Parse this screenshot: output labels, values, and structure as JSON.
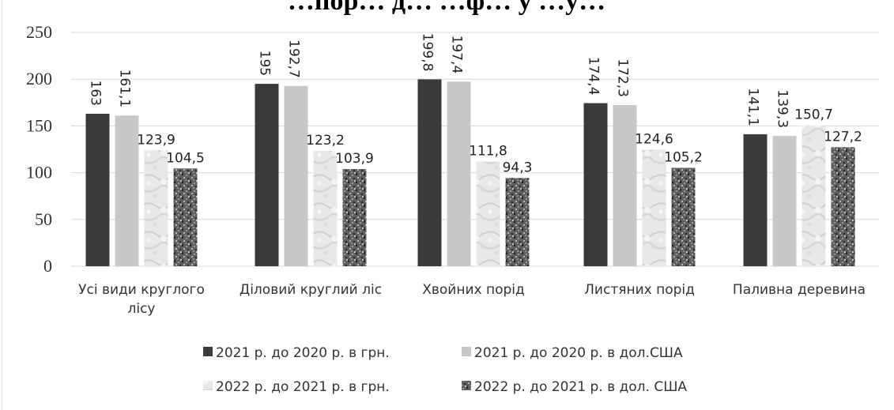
{
  "chart_data": {
    "type": "bar",
    "title": "…пор… д… …ф… у …у…",
    "categories": [
      "Усі види круглого лісу",
      "Діловий круглий ліс",
      "Хвойних порід",
      "Листяних порід",
      "Паливна деревина"
    ],
    "category_lines": [
      [
        "Усі види круглого",
        "лісу"
      ],
      [
        "Діловий круглий ліс"
      ],
      [
        "Хвойних порід"
      ],
      [
        "Листяних порід"
      ],
      [
        "Паливна деревина"
      ]
    ],
    "ylim": [
      0,
      250
    ],
    "yticks": [
      "0",
      "50",
      "100",
      "150",
      "200",
      "250"
    ],
    "grid": true,
    "legend_position": "bottom",
    "series": [
      {
        "name": "2021 р. до 2020 р. в грн.",
        "values": [
          163,
          195,
          199.8,
          174.4,
          141.1
        ],
        "labels": [
          "163",
          "195",
          "199,8",
          "174,4",
          "141,1"
        ],
        "label_rotated": true,
        "color": "#3a3a3a",
        "fill": "solid-dark"
      },
      {
        "name": "2021 р. до 2020 р. в дол.США",
        "values": [
          161.1,
          192.7,
          197.4,
          172.3,
          139.3
        ],
        "labels": [
          "161,1",
          "192,7",
          "197,4",
          "172,3",
          "139,3"
        ],
        "label_rotated": true,
        "color": "#c8c8c8",
        "fill": "solid-light"
      },
      {
        "name": "2022 р. до 2021 р. в грн.",
        "values": [
          123.9,
          123.2,
          111.8,
          124.6,
          150.7
        ],
        "labels": [
          "123,9",
          "123,2",
          "111,8",
          "124,6",
          "150,7"
        ],
        "label_rotated": false,
        "color": "#e6e6e6",
        "fill": "marble-light"
      },
      {
        "name": "2022 р. до 2021 р. в дол. США",
        "values": [
          104.5,
          103.9,
          94.3,
          105.2,
          127.2
        ],
        "labels": [
          "104,5",
          "103,9",
          "94,3",
          "105,2",
          "127,2"
        ],
        "label_rotated": false,
        "color": "#7a7a7a",
        "fill": "granite-dark"
      }
    ]
  }
}
